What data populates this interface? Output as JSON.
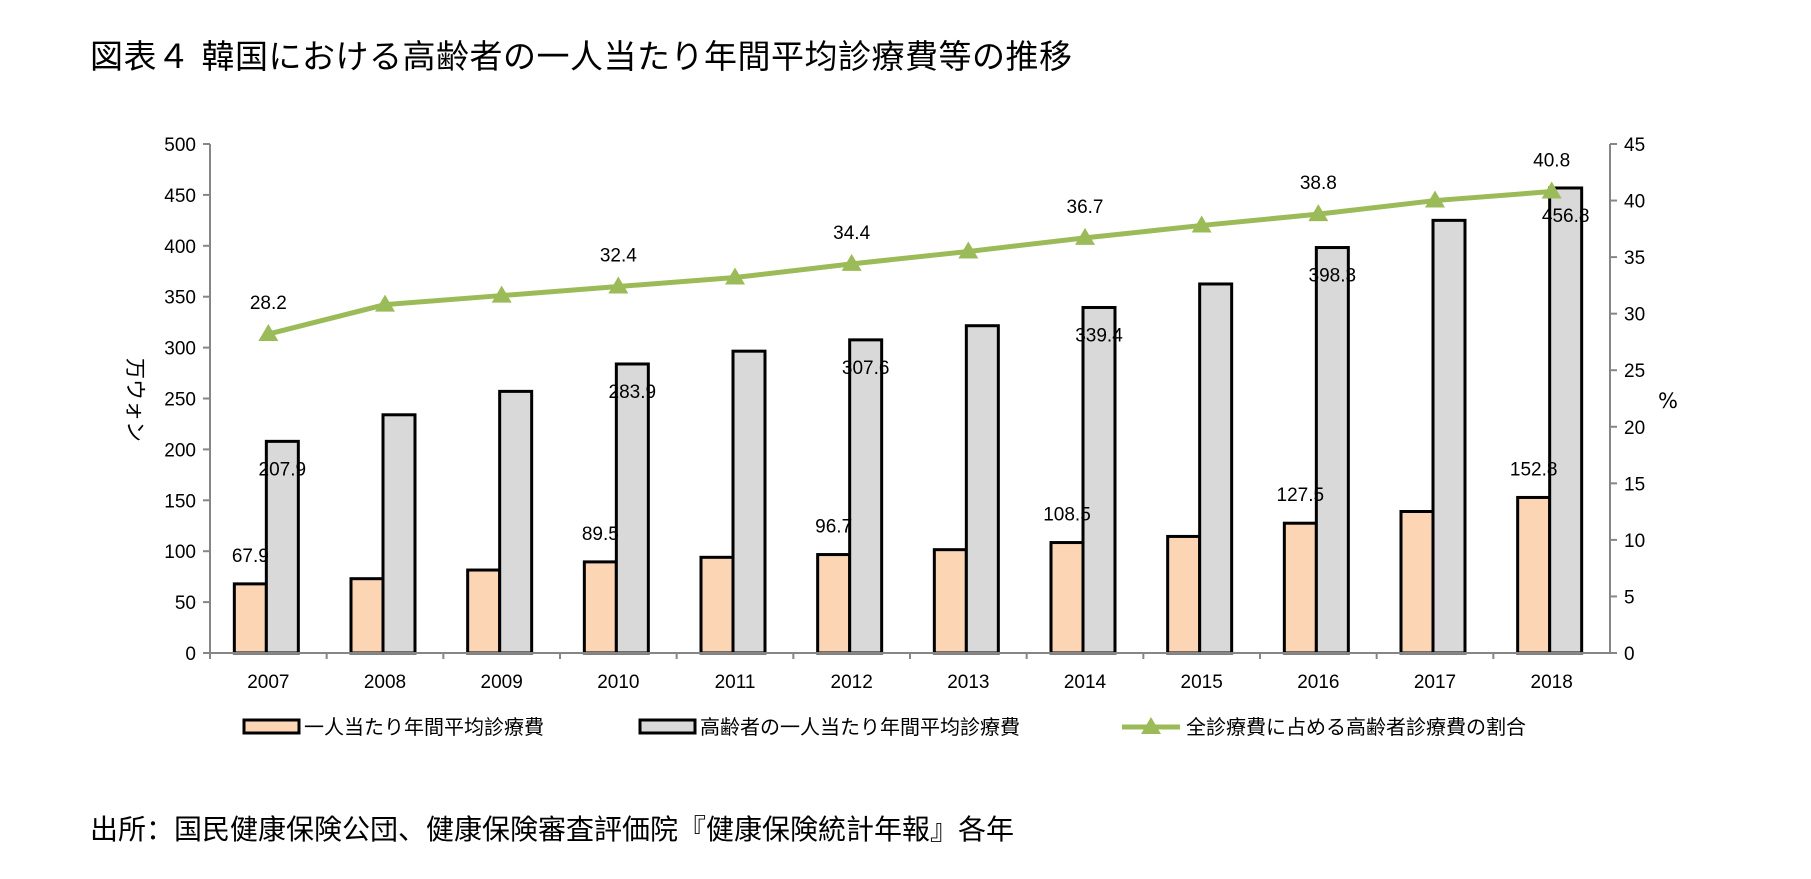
{
  "title": "図表４ 韓国における高齢者の一人当たり年間平均診療費等の推移",
  "source": "出所：国民健康保険公団、健康保険審査評価院『健康保険統計年報』各年",
  "chart_data": {
    "type": "bar",
    "categories": [
      "2007",
      "2008",
      "2009",
      "2010",
      "2011",
      "2012",
      "2013",
      "2014",
      "2015",
      "2016",
      "2017",
      "2018"
    ],
    "series": [
      {
        "name": "一人当たり年間平均診療費",
        "kind": "bar",
        "axis": "left",
        "color": "#fcd5b5",
        "values": [
          67.9,
          73.0,
          81.5,
          89.5,
          94.0,
          96.7,
          101.5,
          108.5,
          114.5,
          127.5,
          139.0,
          152.8
        ],
        "labels": [
          "67.9",
          "",
          "",
          "89.5",
          "",
          "96.7",
          "",
          "108.5",
          "",
          "127.5",
          "",
          "152.8"
        ]
      },
      {
        "name": "高齢者の一人当たり年間平均診療費",
        "kind": "bar",
        "axis": "left",
        "color": "#d9d9d9",
        "values": [
          207.9,
          234.0,
          257.0,
          283.9,
          296.5,
          307.6,
          321.5,
          339.4,
          362.5,
          398.3,
          425.0,
          456.8
        ],
        "labels": [
          "207.9",
          "",
          "",
          "283.9",
          "",
          "307.6",
          "",
          "339.4",
          "",
          "398.3",
          "",
          "456.8"
        ]
      },
      {
        "name": "全診療費に占める高齢者診療費の割合",
        "kind": "line",
        "axis": "right",
        "color": "#9bbb59",
        "values": [
          28.2,
          30.8,
          31.6,
          32.4,
          33.2,
          34.4,
          35.5,
          36.7,
          37.8,
          38.8,
          40.0,
          40.8
        ],
        "labels": [
          "28.2",
          "",
          "",
          "32.4",
          "",
          "34.4",
          "",
          "36.7",
          "",
          "38.8",
          "",
          "40.8"
        ]
      }
    ],
    "ylabel": "万ウォン",
    "y2label": "%",
    "ylim": [
      0,
      500
    ],
    "y2lim": [
      0,
      45
    ],
    "yticks": [
      "0",
      "50",
      "100",
      "150",
      "200",
      "250",
      "300",
      "350",
      "400",
      "450",
      "500"
    ],
    "y2ticks": [
      "0",
      "5",
      "10",
      "15",
      "20",
      "25",
      "30",
      "35",
      "40",
      "45"
    ],
    "grid": false,
    "legend_position": "bottom"
  }
}
